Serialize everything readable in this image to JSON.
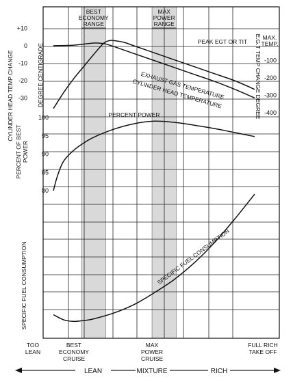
{
  "chart_data": {
    "type": "line",
    "x_axis": {
      "label": "MIXTURE",
      "positions": [
        {
          "id": "too_lean",
          "lines": [
            "TOO",
            "LEAN"
          ]
        },
        {
          "id": "best_economy",
          "lines": [
            "BEST",
            "ECONOMY",
            "CRUISE"
          ]
        },
        {
          "id": "max_power",
          "lines": [
            "MAX",
            "POWER",
            "CRUISE"
          ]
        },
        {
          "id": "full_rich",
          "lines": [
            "FULL RICH",
            "TAKE OFF"
          ]
        }
      ],
      "lean_label": "LEAN",
      "rich_label": "RICH"
    },
    "bands": [
      {
        "lines": [
          "BEST",
          "ECONOMY",
          "RANGE"
        ],
        "x_from": 0.14,
        "x_to": 0.26
      },
      {
        "lines": [
          "MAX",
          "POWER",
          "RANGE"
        ],
        "x_from": 0.49,
        "x_to": 0.61
      }
    ],
    "left_axes": {
      "cht": {
        "label": "CYLINDER HEAD TEMP CHANGE",
        "unit_label": "DEGREE CENTIGRADE",
        "ticks": [
          "+10",
          "0",
          "-10",
          "-20",
          "-30"
        ],
        "values": [
          10,
          0,
          -10,
          -20,
          -30
        ]
      },
      "percent_power": {
        "label": [
          "PERCENT OF BEST",
          "POWER"
        ],
        "ticks": [
          "100",
          "95",
          "90",
          "85",
          "80"
        ],
        "values": [
          100,
          95,
          90,
          85,
          80
        ]
      },
      "sfc": {
        "label": "SPECIFIC FUEL CONSUMPTION"
      }
    },
    "right_axis": {
      "label": "E.G.T TEMP CHANGE DEGREE",
      "ticks": [
        "-100",
        "-200",
        "-300",
        "-400"
      ],
      "values": [
        -100,
        -200,
        -300,
        -400
      ],
      "header": [
        "MAX.",
        "TEMP."
      ],
      "peak_label": "PEAK EGT OR TIT"
    },
    "series": [
      {
        "name": "EXHAUST GAS TEMPERATURE",
        "axis": "egt",
        "x": [
          0.0,
          0.1,
          0.2,
          0.24,
          0.26,
          0.3,
          0.4,
          0.5,
          0.6,
          0.7,
          0.8,
          0.9,
          1.0
        ],
        "y": [
          -15,
          -12,
          0,
          -2,
          -5,
          -20,
          -60,
          -100,
          -140,
          -180,
          -220,
          -265,
          -315
        ]
      },
      {
        "name": "CYLINDER HEAD TEMPERATURE",
        "axis": "cht",
        "x": [
          0.0,
          0.05,
          0.1,
          0.15,
          0.2,
          0.25,
          0.28,
          0.3,
          0.35,
          0.4,
          0.5,
          0.6,
          0.7,
          0.8,
          0.9,
          1.0
        ],
        "y": [
          -36,
          -27,
          -19,
          -12,
          -5,
          1.5,
          3,
          3,
          2,
          0,
          -4,
          -8,
          -12,
          -16,
          -20,
          -25
        ]
      },
      {
        "name": "PERCENT POWER",
        "axis": "percent_power",
        "x": [
          0.0,
          0.02,
          0.05,
          0.1,
          0.15,
          0.2,
          0.3,
          0.4,
          0.5,
          0.6,
          0.7,
          0.8,
          0.9,
          1.0
        ],
        "y": [
          80,
          84,
          88,
          91,
          93,
          94.6,
          96.8,
          98.3,
          99,
          98.7,
          97.9,
          97,
          95.9,
          94.8
        ]
      },
      {
        "name": "SPECIFIC FUEL CONSUMPTION",
        "axis": "sfc",
        "x": [
          0.0,
          0.05,
          0.1,
          0.15,
          0.2,
          0.3,
          0.4,
          0.5,
          0.6,
          0.7,
          0.8,
          0.9,
          1.0
        ],
        "y": [
          0.1,
          0.07,
          0.06,
          0.065,
          0.075,
          0.11,
          0.16,
          0.23,
          0.31,
          0.41,
          0.53,
          0.67,
          0.82
        ]
      }
    ]
  }
}
